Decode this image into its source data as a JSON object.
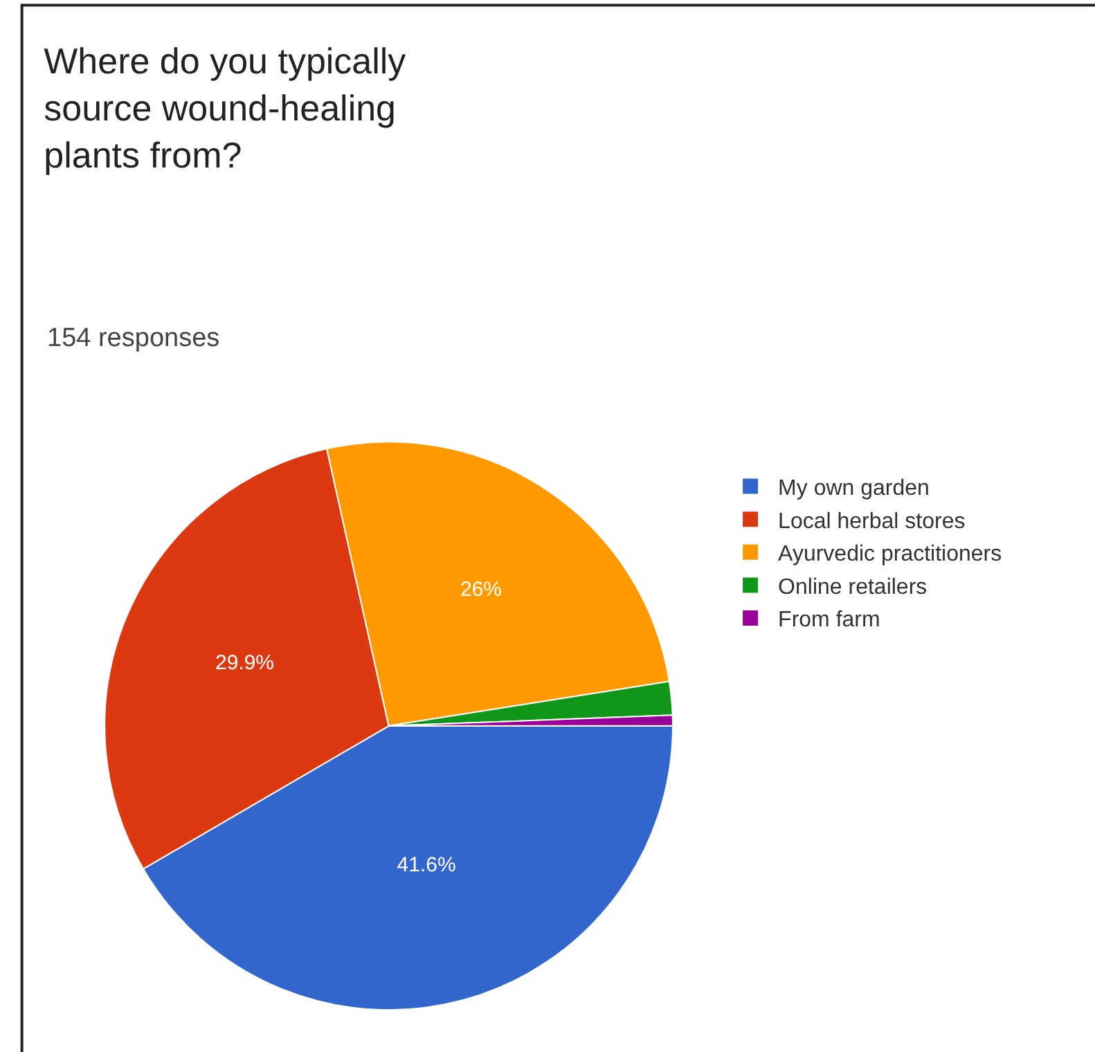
{
  "chart_data": {
    "type": "pie",
    "title": "Where do you typically source wound-healing plants from?",
    "subtitle": "154 responses",
    "categories": [
      "My own garden",
      "Local herbal stores",
      "Ayurvedic practitioners",
      "Online retailers",
      "From farm"
    ],
    "values": [
      41.6,
      29.9,
      26,
      1.9,
      0.6
    ],
    "colors": [
      "#3366cc",
      "#dc3912",
      "#ff9900",
      "#109618",
      "#990099"
    ],
    "value_labels": [
      "41.6%",
      "29.9%",
      "26%",
      null,
      null
    ],
    "legend": "right"
  }
}
